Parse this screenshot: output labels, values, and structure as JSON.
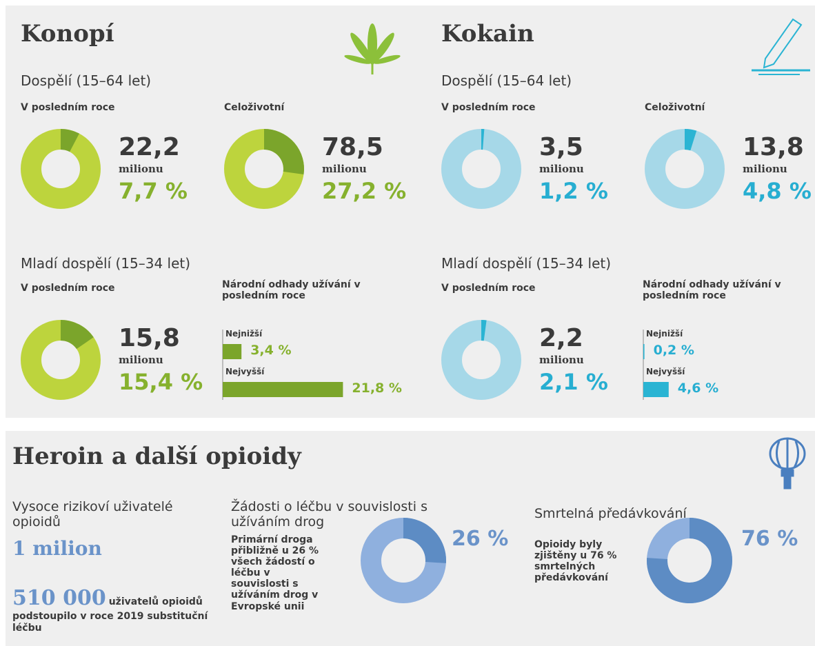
{
  "cannabis": {
    "title": "Konopí",
    "adults": {
      "heading": "Dospělí (15–64 let)",
      "last_year": {
        "label": "V posledním roce",
        "count": "22,2",
        "unit": "milionu",
        "percent": {
          "value": 7.7,
          "label": "7,7 %"
        }
      },
      "lifetime": {
        "label": "Celoživotní",
        "count": "78,5",
        "unit": "milionu",
        "percent": {
          "value": 27.2,
          "label": "27,2 %"
        }
      }
    },
    "young": {
      "heading": "Mladí dospělí (15–34 let)",
      "last_year": {
        "label": "V posledním roce",
        "count": "15,8",
        "unit": "milionu",
        "percent": {
          "value": 15.4,
          "label": "15,4 %"
        }
      },
      "national": {
        "label": "Národní odhady užívání v posledním roce",
        "lowest": {
          "label": "Nejnižší",
          "value": 3.4,
          "value_label": "3,4 %"
        },
        "highest": {
          "label": "Nejvyšší",
          "value": 21.8,
          "value_label": "21,8 %"
        }
      }
    }
  },
  "cocaine": {
    "title": "Kokain",
    "adults": {
      "heading": "Dospělí (15–64 let)",
      "last_year": {
        "label": "V posledním roce",
        "count": "3,5",
        "unit": "milionu",
        "percent": {
          "value": 1.2,
          "label": "1,2 %"
        }
      },
      "lifetime": {
        "label": "Celoživotní",
        "count": "13,8",
        "unit": "milionu",
        "percent": {
          "value": 4.8,
          "label": "4,8 %"
        }
      }
    },
    "young": {
      "heading": "Mladí dospělí (15–34 let)",
      "last_year": {
        "label": "V posledním roce",
        "count": "2,2",
        "unit": "milionu",
        "percent": {
          "value": 2.1,
          "label": "2,1 %"
        }
      },
      "national": {
        "label": "Národní odhady užívání v posledním roce",
        "lowest": {
          "label": "Nejnižší",
          "value": 0.2,
          "value_label": "0,2 %"
        },
        "highest": {
          "label": "Nejvyšší",
          "value": 4.6,
          "value_label": "4,6 %"
        }
      }
    }
  },
  "opioids": {
    "title": "Heroin a další opioidy",
    "high_risk": {
      "label": "Vysoce rizikoví uživatelé opioidů",
      "count": "1 milion",
      "treated_count": "510 000",
      "treated_text": "uživatelů opioidů podstoupilo v roce 2019 substituční léčbu"
    },
    "treatment": {
      "heading": "Žádosti o léčbu v souvislosti s užíváním drog",
      "text": "Primární droga přibližně u 26 % všech žádostí o léčbu v souvislosti s užíváním drog v Evropské unii",
      "percent": {
        "value": 26,
        "label": "26 %"
      }
    },
    "deaths": {
      "heading": "Smrtelná předávkování",
      "text": "Opioidy byly zjištěny u 76 % smrtelných předávkování",
      "percent": {
        "value": 76,
        "label": "76 %"
      }
    }
  }
}
